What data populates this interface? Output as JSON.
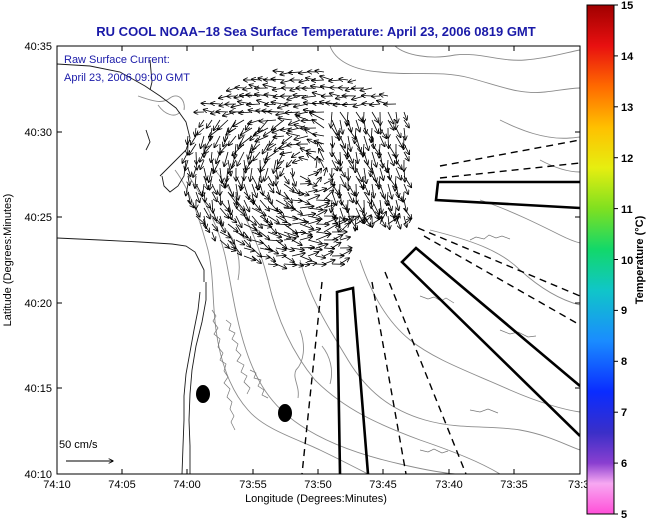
{
  "title": "RU COOL  NOAA−18  Sea Surface Temperature:  April 23, 2006 0819 GMT",
  "legend": {
    "line1": "Raw Surface Current:",
    "line2": "April 23, 2006 09:00 GMT"
  },
  "scale_label": "50 cm/s",
  "axes": {
    "xlabel": "Longitude (Degrees:Minutes)",
    "ylabel": "Latitude (Degrees:Minutes)",
    "x_ticks": [
      "74:10",
      "74:05",
      "74:00",
      "73:55",
      "73:50",
      "73:45",
      "73:40",
      "73:35",
      "73:3"
    ],
    "y_ticks": [
      "40:35",
      "40:30",
      "40:25",
      "40:20",
      "40:15",
      "40:10"
    ]
  },
  "colorbar": {
    "label": "Temperature (°C)",
    "ticks": [
      "15",
      "14",
      "13",
      "12",
      "11",
      "10",
      "9",
      "8",
      "7",
      "6",
      "5"
    ],
    "min": 5,
    "max": 15
  },
  "chart_data": {
    "type": "map",
    "title": "RU COOL  NOAA−18  Sea Surface Temperature:  April 23, 2006 0819 GMT",
    "xlabel": "Longitude (Degrees:Minutes)",
    "ylabel": "Latitude (Degrees:Minutes)",
    "xlim": [
      "74:10",
      "73:30"
    ],
    "ylim": [
      "40:10",
      "40:35"
    ],
    "colorbar_range": [
      5,
      15
    ],
    "colorbar_units": "Temperature (°C)",
    "markers": [
      {
        "lon": "74:00",
        "lat": "40:14.6"
      },
      {
        "lon": "73:57",
        "lat": "40:13.5"
      }
    ]
  }
}
